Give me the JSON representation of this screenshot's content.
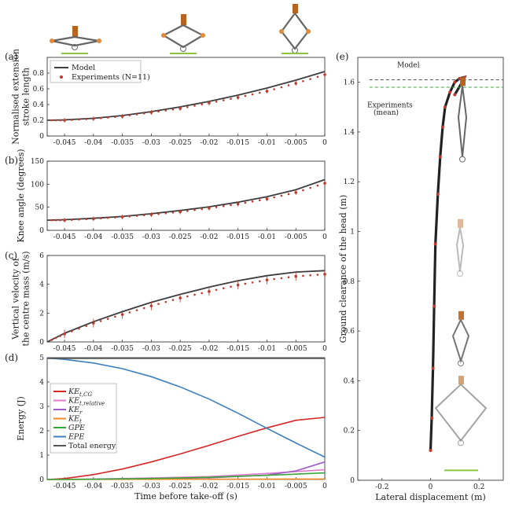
{
  "colors": {
    "model": "#3d3d3d",
    "experiment": "#c0392b",
    "ke_cg": "#d62728",
    "ke_relative": "#e07bd0",
    "ke_r": "#a05cc8",
    "ke_t": "#f28c28",
    "gpe": "#3aa63a",
    "epe": "#3b7fc0",
    "total": "#555555",
    "dash_model": "#555555",
    "dash_exp": "#3aa63a"
  },
  "icons": [
    "robot-crouched-icon",
    "robot-mid-icon",
    "robot-extended-icon",
    "robot-stages-icon",
    "ground-hatch-icon"
  ],
  "shared_x": {
    "xlim": [
      -0.048,
      0
    ],
    "ticks": [
      -0.045,
      -0.04,
      -0.035,
      -0.03,
      -0.025,
      -0.02,
      -0.015,
      -0.01,
      -0.005,
      0
    ],
    "tick_labels": [
      "-0.045",
      "-0.04",
      "-0.035",
      "-0.03",
      "-0.025",
      "-0.02",
      "-0.015",
      "-0.01",
      "-0.005",
      "0"
    ],
    "xlabel": "Time before take-off (s)"
  },
  "chart_data": [
    {
      "panel": "(a)",
      "type": "line",
      "ylabel_lines": [
        "Normalised extension",
        "stroke length"
      ],
      "ylim": [
        0,
        1
      ],
      "yticks": [
        0,
        0.2,
        0.4,
        0.6,
        0.8
      ],
      "ytick_labels": [
        "0",
        "0.2",
        "0.4",
        "0.6",
        "0.8"
      ],
      "legend": {
        "placement": "top-left",
        "entries": [
          "Model",
          "Experiments (N=11)"
        ]
      },
      "series": [
        {
          "name": "Model",
          "x": [
            -0.048,
            -0.045,
            -0.04,
            -0.035,
            -0.03,
            -0.025,
            -0.02,
            -0.015,
            -0.01,
            -0.005,
            0
          ],
          "y": [
            0.2,
            0.205,
            0.225,
            0.26,
            0.31,
            0.37,
            0.44,
            0.52,
            0.61,
            0.71,
            0.82
          ]
        },
        {
          "name": "Experiments (N=11)",
          "x": [
            -0.048,
            -0.045,
            -0.04,
            -0.035,
            -0.03,
            -0.025,
            -0.02,
            -0.015,
            -0.01,
            -0.005,
            0
          ],
          "y": [
            0.2,
            0.2,
            0.22,
            0.25,
            0.3,
            0.35,
            0.42,
            0.49,
            0.57,
            0.67,
            0.78
          ],
          "error": 0.03
        }
      ]
    },
    {
      "panel": "(b)",
      "type": "line",
      "ylabel_lines": [
        "Knee angle (degrees)"
      ],
      "ylim": [
        0,
        150
      ],
      "yticks": [
        0,
        50,
        100,
        150
      ],
      "ytick_labels": [
        "0",
        "50",
        "100",
        "150"
      ],
      "series": [
        {
          "name": "Model",
          "x": [
            -0.048,
            -0.045,
            -0.04,
            -0.035,
            -0.03,
            -0.025,
            -0.02,
            -0.015,
            -0.01,
            -0.005,
            0
          ],
          "y": [
            22,
            23,
            26,
            30,
            36,
            43,
            51,
            61,
            73,
            88,
            110
          ]
        },
        {
          "name": "Experiments (N=11)",
          "x": [
            -0.048,
            -0.045,
            -0.04,
            -0.035,
            -0.03,
            -0.025,
            -0.02,
            -0.015,
            -0.01,
            -0.005,
            0
          ],
          "y": [
            22,
            22,
            25,
            29,
            34,
            40,
            48,
            57,
            68,
            82,
            102
          ],
          "error": 5
        }
      ]
    },
    {
      "panel": "(c)",
      "type": "line",
      "ylabel_lines": [
        "Vertical velocity of",
        "the centre mass (m/s)"
      ],
      "ylim": [
        0,
        6
      ],
      "yticks": [
        0,
        2,
        4,
        6
      ],
      "ytick_labels": [
        "0",
        "2",
        "4",
        "6"
      ],
      "series": [
        {
          "name": "Model",
          "x": [
            -0.048,
            -0.045,
            -0.04,
            -0.035,
            -0.03,
            -0.025,
            -0.02,
            -0.015,
            -0.01,
            -0.005,
            0
          ],
          "y": [
            0,
            0.6,
            1.4,
            2.1,
            2.75,
            3.3,
            3.8,
            4.25,
            4.6,
            4.85,
            4.95
          ]
        },
        {
          "name": "Experiments (N=11)",
          "x": [
            -0.048,
            -0.045,
            -0.04,
            -0.035,
            -0.03,
            -0.025,
            -0.02,
            -0.015,
            -0.01,
            -0.005,
            0
          ],
          "y": [
            0,
            0.55,
            1.3,
            1.9,
            2.5,
            3.05,
            3.5,
            3.95,
            4.3,
            4.55,
            4.7
          ],
          "error": 0.3
        }
      ]
    },
    {
      "panel": "(d)",
      "type": "line",
      "ylabel_lines": [
        "Energy (J)"
      ],
      "ylim": [
        0,
        5
      ],
      "yticks": [
        0,
        1,
        2,
        3,
        4,
        5
      ],
      "ytick_labels": [
        "0",
        "1",
        "2",
        "3",
        "4",
        "5"
      ],
      "legend": {
        "placement": "left",
        "entries": [
          "KE_{t,CG}",
          "KE_{t,relative}",
          "KE_r",
          "KE_t",
          "GPE",
          "EPE",
          "Total energy"
        ]
      },
      "series": [
        {
          "name": "KE_{t,CG}",
          "x": [
            -0.048,
            -0.045,
            -0.04,
            -0.035,
            -0.03,
            -0.025,
            -0.02,
            -0.015,
            -0.01,
            -0.005,
            0
          ],
          "y": [
            0,
            0.04,
            0.2,
            0.43,
            0.72,
            1.05,
            1.4,
            1.77,
            2.12,
            2.43,
            2.55
          ]
        },
        {
          "name": "KE_{t,relative}",
          "x": [
            -0.048,
            -0.04,
            -0.03,
            -0.02,
            -0.01,
            0
          ],
          "y": [
            0,
            0.02,
            0.06,
            0.12,
            0.25,
            0.4
          ]
        },
        {
          "name": "KE_r",
          "x": [
            -0.048,
            -0.04,
            -0.03,
            -0.02,
            -0.01,
            -0.005,
            0
          ],
          "y": [
            0,
            0.01,
            0.03,
            0.07,
            0.18,
            0.35,
            0.72
          ]
        },
        {
          "name": "KE_t",
          "x": [
            -0.048,
            0
          ],
          "y": [
            0,
            0.02
          ]
        },
        {
          "name": "GPE",
          "x": [
            -0.048,
            -0.04,
            -0.03,
            -0.02,
            -0.01,
            0
          ],
          "y": [
            0,
            0.01,
            0.04,
            0.09,
            0.17,
            0.27
          ]
        },
        {
          "name": "EPE",
          "x": [
            -0.048,
            -0.045,
            -0.04,
            -0.035,
            -0.03,
            -0.025,
            -0.02,
            -0.015,
            -0.01,
            -0.005,
            0
          ],
          "y": [
            4.98,
            4.93,
            4.78,
            4.55,
            4.22,
            3.8,
            3.3,
            2.72,
            2.1,
            1.5,
            0.92
          ]
        },
        {
          "name": "Total energy",
          "x": [
            -0.048,
            0
          ],
          "y": [
            4.97,
            4.97
          ]
        }
      ]
    },
    {
      "panel": "(e)",
      "type": "line",
      "xlabel": "Lateral displacement (m)",
      "ylabel_lines": [
        "Ground clearance of the head (m)"
      ],
      "xlim": [
        -0.3,
        0.3
      ],
      "ylim": [
        0,
        1.7
      ],
      "xticks": [
        -0.2,
        0,
        0.2
      ],
      "xtick_labels": [
        "-0.2",
        "0",
        "0.2"
      ],
      "yticks": [
        0,
        0.2,
        0.4,
        0.6,
        0.8,
        1,
        1.2,
        1.4,
        1.6
      ],
      "ytick_labels": [
        "0",
        "0.2",
        "0.4",
        "0.6",
        "0.8",
        "1",
        "1.2",
        "1.4",
        "1.6"
      ],
      "annotations": [
        "Model",
        "Experiments",
        "(mean)"
      ],
      "reference_lines": [
        {
          "name": "Model",
          "y": 1.61
        },
        {
          "name": "Experiments (mean)",
          "y": 1.58
        }
      ],
      "series": [
        {
          "name": "head trajectory",
          "x": [
            0.0,
            0.005,
            0.01,
            0.015,
            0.02,
            0.03,
            0.04,
            0.05,
            0.06,
            0.08,
            0.1,
            0.12,
            0.14,
            0.13,
            0.1
          ],
          "y": [
            0.12,
            0.25,
            0.45,
            0.7,
            0.95,
            1.15,
            1.3,
            1.42,
            1.5,
            1.56,
            1.6,
            1.615,
            1.62,
            1.6,
            1.55
          ]
        }
      ]
    }
  ]
}
